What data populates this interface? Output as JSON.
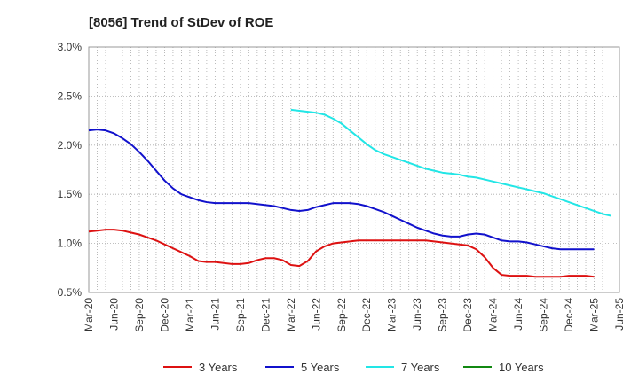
{
  "chart_data": {
    "type": "line",
    "title": "[8056]  Trend of StDev of ROE",
    "xlabel": "",
    "ylabel": "",
    "ylim": [
      0.005,
      0.03
    ],
    "y_ticks": [
      "0.5%",
      "1.0%",
      "1.5%",
      "2.0%",
      "2.5%",
      "3.0%"
    ],
    "x_ticks": [
      "Mar-20",
      "Jun-20",
      "Sep-20",
      "Dec-20",
      "Mar-21",
      "Jun-21",
      "Sep-21",
      "Dec-21",
      "Mar-22",
      "Jun-22",
      "Sep-22",
      "Dec-22",
      "Mar-23",
      "Jun-23",
      "Sep-23",
      "Dec-23",
      "Mar-24",
      "Jun-24",
      "Sep-24",
      "Dec-24",
      "Mar-25",
      "Jun-25"
    ],
    "grid": "dotted vertical and horizontal",
    "legend": "bottom",
    "series": [
      {
        "name": "3 Years",
        "color": "#dd1111",
        "points": [
          [
            "Mar-20",
            0.0112
          ],
          [
            "Apr-20",
            0.0113
          ],
          [
            "May-20",
            0.0114
          ],
          [
            "Jun-20",
            0.0114
          ],
          [
            "Jul-20",
            0.0113
          ],
          [
            "Aug-20",
            0.0111
          ],
          [
            "Sep-20",
            0.0109
          ],
          [
            "Oct-20",
            0.0106
          ],
          [
            "Nov-20",
            0.0103
          ],
          [
            "Dec-20",
            0.0099
          ],
          [
            "Jan-21",
            0.0095
          ],
          [
            "Feb-21",
            0.0091
          ],
          [
            "Mar-21",
            0.0087
          ],
          [
            "Apr-21",
            0.0082
          ],
          [
            "May-21",
            0.0081
          ],
          [
            "Jun-21",
            0.0081
          ],
          [
            "Jul-21",
            0.008
          ],
          [
            "Aug-21",
            0.0079
          ],
          [
            "Sep-21",
            0.0079
          ],
          [
            "Oct-21",
            0.008
          ],
          [
            "Nov-21",
            0.0083
          ],
          [
            "Dec-21",
            0.0085
          ],
          [
            "Jan-22",
            0.0085
          ],
          [
            "Feb-22",
            0.0083
          ],
          [
            "Mar-22",
            0.0078
          ],
          [
            "Apr-22",
            0.0077
          ],
          [
            "May-22",
            0.0082
          ],
          [
            "Jun-22",
            0.0092
          ],
          [
            "Jul-22",
            0.0097
          ],
          [
            "Aug-22",
            0.01
          ],
          [
            "Sep-22",
            0.0101
          ],
          [
            "Oct-22",
            0.0102
          ],
          [
            "Nov-22",
            0.0103
          ],
          [
            "Dec-22",
            0.0103
          ],
          [
            "Jan-23",
            0.0103
          ],
          [
            "Feb-23",
            0.0103
          ],
          [
            "Mar-23",
            0.0103
          ],
          [
            "Apr-23",
            0.0103
          ],
          [
            "May-23",
            0.0103
          ],
          [
            "Jun-23",
            0.0103
          ],
          [
            "Jul-23",
            0.0103
          ],
          [
            "Aug-23",
            0.0102
          ],
          [
            "Sep-23",
            0.0101
          ],
          [
            "Oct-23",
            0.01
          ],
          [
            "Nov-23",
            0.0099
          ],
          [
            "Dec-23",
            0.0098
          ],
          [
            "Jan-24",
            0.0094
          ],
          [
            "Feb-24",
            0.0086
          ],
          [
            "Mar-24",
            0.0075
          ],
          [
            "Apr-24",
            0.0068
          ],
          [
            "May-24",
            0.0067
          ],
          [
            "Jun-24",
            0.0067
          ],
          [
            "Jul-24",
            0.0067
          ],
          [
            "Aug-24",
            0.0066
          ],
          [
            "Sep-24",
            0.0066
          ],
          [
            "Oct-24",
            0.0066
          ],
          [
            "Nov-24",
            0.0066
          ],
          [
            "Dec-24",
            0.0067
          ],
          [
            "Jan-25",
            0.0067
          ],
          [
            "Feb-25",
            0.0067
          ],
          [
            "Mar-25",
            0.0066
          ]
        ]
      },
      {
        "name": "5 Years",
        "color": "#1111cc",
        "points": [
          [
            "Mar-20",
            0.0215
          ],
          [
            "Apr-20",
            0.0216
          ],
          [
            "May-20",
            0.0215
          ],
          [
            "Jun-20",
            0.0212
          ],
          [
            "Jul-20",
            0.0207
          ],
          [
            "Aug-20",
            0.0201
          ],
          [
            "Sep-20",
            0.0193
          ],
          [
            "Oct-20",
            0.0184
          ],
          [
            "Nov-20",
            0.0174
          ],
          [
            "Dec-20",
            0.0164
          ],
          [
            "Jan-21",
            0.0156
          ],
          [
            "Feb-21",
            0.015
          ],
          [
            "Mar-21",
            0.0147
          ],
          [
            "Apr-21",
            0.0144
          ],
          [
            "May-21",
            0.0142
          ],
          [
            "Jun-21",
            0.0141
          ],
          [
            "Jul-21",
            0.0141
          ],
          [
            "Aug-21",
            0.0141
          ],
          [
            "Sep-21",
            0.0141
          ],
          [
            "Oct-21",
            0.0141
          ],
          [
            "Nov-21",
            0.014
          ],
          [
            "Dec-21",
            0.0139
          ],
          [
            "Jan-22",
            0.0138
          ],
          [
            "Feb-22",
            0.0136
          ],
          [
            "Mar-22",
            0.0134
          ],
          [
            "Apr-22",
            0.0133
          ],
          [
            "May-22",
            0.0134
          ],
          [
            "Jun-22",
            0.0137
          ],
          [
            "Jul-22",
            0.0139
          ],
          [
            "Aug-22",
            0.0141
          ],
          [
            "Sep-22",
            0.0141
          ],
          [
            "Oct-22",
            0.0141
          ],
          [
            "Nov-22",
            0.014
          ],
          [
            "Dec-22",
            0.0138
          ],
          [
            "Jan-23",
            0.0135
          ],
          [
            "Feb-23",
            0.0132
          ],
          [
            "Mar-23",
            0.0128
          ],
          [
            "Apr-23",
            0.0124
          ],
          [
            "May-23",
            0.012
          ],
          [
            "Jun-23",
            0.0116
          ],
          [
            "Jul-23",
            0.0113
          ],
          [
            "Aug-23",
            0.011
          ],
          [
            "Sep-23",
            0.0108
          ],
          [
            "Oct-23",
            0.0107
          ],
          [
            "Nov-23",
            0.0107
          ],
          [
            "Dec-23",
            0.0109
          ],
          [
            "Jan-24",
            0.011
          ],
          [
            "Feb-24",
            0.0109
          ],
          [
            "Mar-24",
            0.0106
          ],
          [
            "Apr-24",
            0.0103
          ],
          [
            "May-24",
            0.0102
          ],
          [
            "Jun-24",
            0.0102
          ],
          [
            "Jul-24",
            0.0101
          ],
          [
            "Aug-24",
            0.0099
          ],
          [
            "Sep-24",
            0.0097
          ],
          [
            "Oct-24",
            0.0095
          ],
          [
            "Nov-24",
            0.0094
          ],
          [
            "Dec-24",
            0.0094
          ],
          [
            "Jan-25",
            0.0094
          ],
          [
            "Feb-25",
            0.0094
          ],
          [
            "Mar-25",
            0.0094
          ]
        ]
      },
      {
        "name": "7 Years",
        "color": "#22e6e6",
        "points": [
          [
            "Mar-22",
            0.0236
          ],
          [
            "Apr-22",
            0.0235
          ],
          [
            "May-22",
            0.0234
          ],
          [
            "Jun-22",
            0.0233
          ],
          [
            "Jul-22",
            0.0231
          ],
          [
            "Aug-22",
            0.0227
          ],
          [
            "Sep-22",
            0.0222
          ],
          [
            "Oct-22",
            0.0215
          ],
          [
            "Nov-22",
            0.0208
          ],
          [
            "Dec-22",
            0.0201
          ],
          [
            "Jan-23",
            0.0195
          ],
          [
            "Feb-23",
            0.0191
          ],
          [
            "Mar-23",
            0.0188
          ],
          [
            "Apr-23",
            0.0185
          ],
          [
            "May-23",
            0.0182
          ],
          [
            "Jun-23",
            0.0179
          ],
          [
            "Jul-23",
            0.0176
          ],
          [
            "Aug-23",
            0.0174
          ],
          [
            "Sep-23",
            0.0172
          ],
          [
            "Oct-23",
            0.0171
          ],
          [
            "Nov-23",
            0.017
          ],
          [
            "Dec-23",
            0.0168
          ],
          [
            "Jan-24",
            0.0167
          ],
          [
            "Feb-24",
            0.0165
          ],
          [
            "Mar-24",
            0.0163
          ],
          [
            "Apr-24",
            0.0161
          ],
          [
            "May-24",
            0.0159
          ],
          [
            "Jun-24",
            0.0157
          ],
          [
            "Jul-24",
            0.0155
          ],
          [
            "Aug-24",
            0.0153
          ],
          [
            "Sep-24",
            0.0151
          ],
          [
            "Oct-24",
            0.0148
          ],
          [
            "Nov-24",
            0.0145
          ],
          [
            "Dec-24",
            0.0142
          ],
          [
            "Jan-25",
            0.0139
          ],
          [
            "Feb-25",
            0.0136
          ],
          [
            "Mar-25",
            0.0133
          ],
          [
            "Apr-25",
            0.013
          ],
          [
            "May-25",
            0.0128
          ]
        ]
      },
      {
        "name": "10 Years",
        "color": "#118811",
        "points": []
      }
    ]
  }
}
